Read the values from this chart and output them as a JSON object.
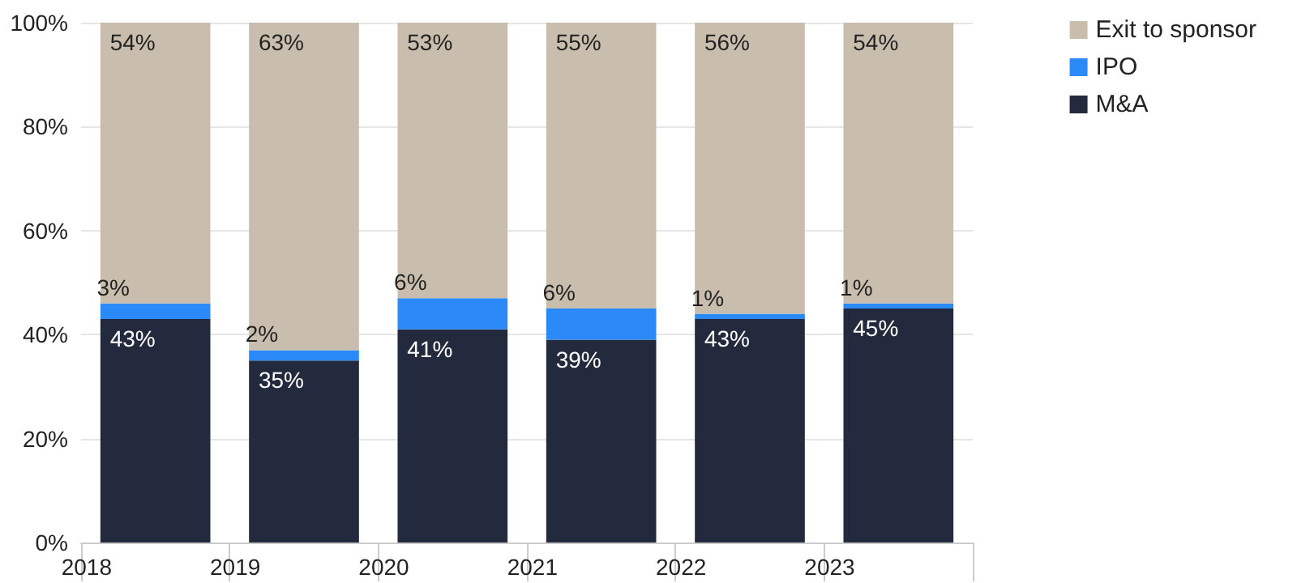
{
  "chart_data": {
    "type": "bar",
    "stacked": true,
    "categories": [
      "2018",
      "2019",
      "2020",
      "2021",
      "2022",
      "2023"
    ],
    "series": [
      {
        "name": "M&A",
        "color": "#232a3e",
        "values": [
          43,
          35,
          41,
          39,
          43,
          45
        ],
        "value_labels": [
          "43%",
          "35%",
          "41%",
          "39%",
          "43%",
          "45%"
        ]
      },
      {
        "name": "IPO",
        "color": "#2b8af7",
        "values": [
          3,
          2,
          6,
          6,
          1,
          1
        ],
        "value_labels": [
          "3%",
          "2%",
          "6%",
          "6%",
          "1%",
          "1%"
        ]
      },
      {
        "name": "Exit to sponsor",
        "color": "#c9bead",
        "values": [
          54,
          63,
          53,
          55,
          56,
          54
        ],
        "value_labels": [
          "54%",
          "63%",
          "53%",
          "55%",
          "56%",
          "54%"
        ]
      }
    ],
    "ylim": [
      0,
      100
    ],
    "yticks": [
      {
        "value": 0,
        "label": "0%"
      },
      {
        "value": 20,
        "label": "20%"
      },
      {
        "value": 40,
        "label": "40%"
      },
      {
        "value": 60,
        "label": "60%"
      },
      {
        "value": 80,
        "label": "80%"
      },
      {
        "value": 100,
        "label": "100%"
      }
    ],
    "grid": "y",
    "legend": "top right"
  }
}
